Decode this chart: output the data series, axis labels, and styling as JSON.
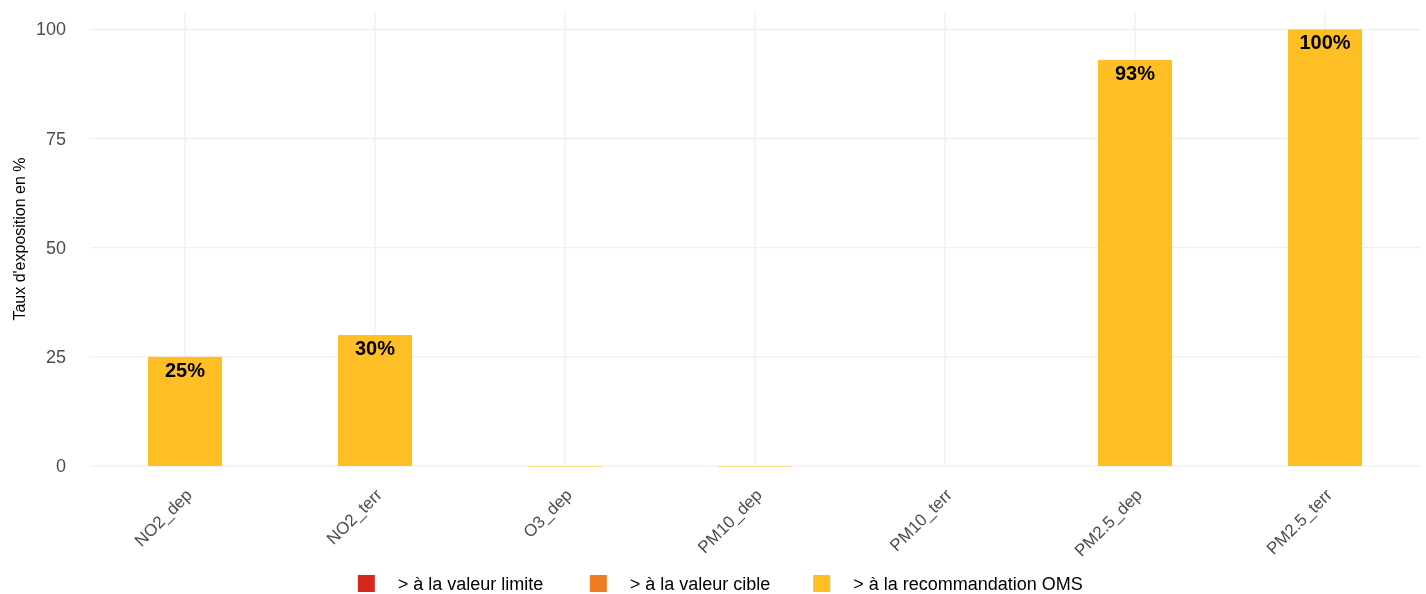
{
  "chart_data": {
    "type": "bar",
    "ylabel": "Taux d'exposition en %",
    "categories": [
      "NO2_dep",
      "NO2_terr",
      "O3_dep",
      "PM10_dep",
      "PM10_terr",
      "PM2.5_dep",
      "PM2.5_terr"
    ],
    "series": [
      {
        "name": "> à la valeur limite",
        "color": "#d7261e",
        "values": [
          null,
          null,
          null,
          null,
          null,
          null,
          null
        ]
      },
      {
        "name": "> à la valeur cible",
        "color": "#f07d22",
        "values": [
          null,
          null,
          null,
          null,
          null,
          null,
          null
        ]
      },
      {
        "name": "> à la recommandation OMS",
        "color": "#fdbf24",
        "values": [
          25,
          30,
          0,
          0,
          null,
          93,
          100
        ],
        "value_labels": [
          "25%",
          "30%",
          null,
          null,
          null,
          "93%",
          "100%"
        ]
      }
    ],
    "ylim": [
      0,
      104
    ],
    "yticks": [
      0,
      25,
      50,
      75,
      100
    ],
    "grid": true,
    "legend": "bottom"
  }
}
